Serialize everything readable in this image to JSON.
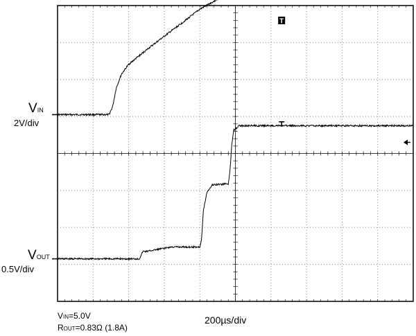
{
  "chart_data": {
    "type": "line",
    "title": "",
    "xlabel": "200µs/div",
    "grid": true,
    "time_per_div_us": 200,
    "x_divisions": 10,
    "y_divisions": 8,
    "channels": [
      {
        "name_main": "V",
        "name_sub": "IN",
        "scale": "2V/div",
        "ground_div": 5.05,
        "points_div": [
          [
            0,
            0
          ],
          [
            1.45,
            0
          ],
          [
            1.55,
            0.22
          ],
          [
            1.65,
            0.72
          ],
          [
            1.8,
            1.1
          ],
          [
            2.0,
            1.36
          ],
          [
            2.5,
            1.75
          ],
          [
            3.0,
            2.12
          ],
          [
            3.5,
            2.48
          ],
          [
            4.0,
            2.85
          ],
          [
            4.5,
            3.12
          ],
          [
            4.73,
            3.22
          ],
          [
            5.0,
            3.22
          ],
          [
            10,
            3.22
          ]
        ]
      },
      {
        "name_main": "V",
        "name_sub": "OUT",
        "scale": "0.5V/div",
        "ground_div": 1.15,
        "points_div": [
          [
            0,
            0
          ],
          [
            2.3,
            0
          ],
          [
            2.4,
            0.2
          ],
          [
            2.5,
            0.2
          ],
          [
            3.2,
            0.32
          ],
          [
            4.0,
            0.32
          ],
          [
            4.05,
            0.55
          ],
          [
            4.1,
            1.3
          ],
          [
            4.2,
            1.8
          ],
          [
            4.35,
            2.0
          ],
          [
            4.8,
            2.03
          ],
          [
            4.85,
            2.4
          ],
          [
            4.9,
            3.1
          ],
          [
            4.95,
            3.48
          ],
          [
            5.1,
            3.6
          ],
          [
            10,
            3.6
          ]
        ]
      }
    ],
    "markers": {
      "trigger_marker": "T",
      "trigger_level_arrow": "left-arrow"
    }
  },
  "labels": {
    "vin_main": "V",
    "vin_sub": "IN",
    "vin_scale": "2V/div",
    "vout_main": "V",
    "vout_sub": "OUT",
    "vout_scale": "0.5V/div",
    "timebase": "200µs/div",
    "cond1_main": "V",
    "cond1_sub": "IN",
    "cond1_rest": "=5.0V",
    "cond2_main": "R",
    "cond2_sub": "OUT",
    "cond2_rest": "=0.83Ω (1.8A)"
  }
}
